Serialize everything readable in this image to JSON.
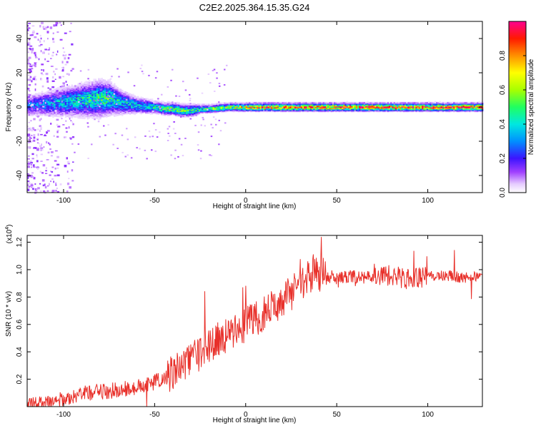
{
  "figure": {
    "title": "C2E2.2025.364.15.35.G24"
  },
  "chart_data": [
    {
      "type": "heatmap",
      "xlabel": "Height of straight line (km)",
      "ylabel": "Frequency (Hz)",
      "xlim": [
        -120,
        130
      ],
      "ylim": [
        -50,
        50
      ],
      "xticks": [
        -100,
        -50,
        0,
        50,
        100
      ],
      "yticks": [
        -40,
        -20,
        0,
        20,
        40
      ],
      "colorbar": {
        "label": "Normalized spectral amplitude",
        "range": [
          0,
          1
        ],
        "ticks": [
          "0.0",
          "0.2",
          "0.4",
          "0.6",
          "0.8"
        ]
      },
      "band": {
        "x": [
          -120,
          -110,
          -100,
          -90,
          -80,
          -75,
          -70,
          -60,
          -50,
          -45,
          -40,
          -35,
          -30,
          -25,
          -20,
          -10,
          0,
          10,
          50,
          100,
          130
        ],
        "center_hz": [
          1,
          2,
          3,
          4,
          5,
          5,
          3,
          1,
          0,
          -1,
          -1,
          -2,
          -2,
          -1,
          -1,
          0,
          0,
          0,
          0,
          0,
          0
        ],
        "halfwidth_hz": [
          5,
          6,
          7,
          8,
          9,
          8,
          6,
          4,
          3,
          3,
          3,
          3,
          3,
          2,
          2,
          2,
          2,
          2,
          2,
          2,
          2
        ],
        "peak_amplitude": [
          0.25,
          0.3,
          0.35,
          0.4,
          0.45,
          0.45,
          0.4,
          0.35,
          0.4,
          0.45,
          0.5,
          0.5,
          0.45,
          0.45,
          0.5,
          0.55,
          0.7,
          0.75,
          0.8,
          0.8,
          0.8
        ]
      },
      "scatter_region": {
        "x": [
          -120,
          -95
        ],
        "frequency_hz": [
          -50,
          50
        ]
      }
    },
    {
      "type": "line",
      "xlabel": "Height of straight line (km)",
      "ylabel": "SNR (10 * v/v)",
      "y_multiplier": "(x10",
      "y_multiplier_exp": "4",
      "y_multiplier_close": ")",
      "xlim": [
        -120,
        130
      ],
      "ylim": [
        0,
        1.25
      ],
      "xticks": [
        -100,
        -50,
        0,
        50,
        100
      ],
      "yticks": [
        "0.2",
        "0.4",
        "0.6",
        "0.8",
        "1.0",
        "1.2"
      ],
      "series": [
        {
          "name": "SNR",
          "color": "#e8302a",
          "x": [
            -120,
            -110,
            -100,
            -90,
            -80,
            -70,
            -60,
            -50,
            -45,
            -40,
            -35,
            -30,
            -25,
            -20,
            -15,
            -10,
            -5,
            0,
            5,
            10,
            15,
            20,
            25,
            30,
            35,
            38,
            40,
            45,
            50,
            55,
            60,
            65,
            70,
            75,
            80,
            85,
            90,
            95,
            100,
            105,
            110,
            115,
            120,
            125,
            130
          ],
          "values": [
            0.01,
            0.03,
            0.06,
            0.09,
            0.11,
            0.12,
            0.14,
            0.18,
            0.21,
            0.25,
            0.3,
            0.34,
            0.39,
            0.45,
            0.49,
            0.52,
            0.56,
            0.6,
            0.64,
            0.68,
            0.72,
            0.77,
            0.83,
            0.88,
            0.95,
            1.0,
            0.97,
            0.95,
            0.94,
            0.95,
            0.95,
            0.94,
            0.95,
            0.96,
            0.95,
            0.94,
            0.93,
            0.94,
            0.95,
            0.95,
            0.96,
            0.95,
            0.94,
            0.95,
            0.95
          ]
        }
      ]
    }
  ]
}
